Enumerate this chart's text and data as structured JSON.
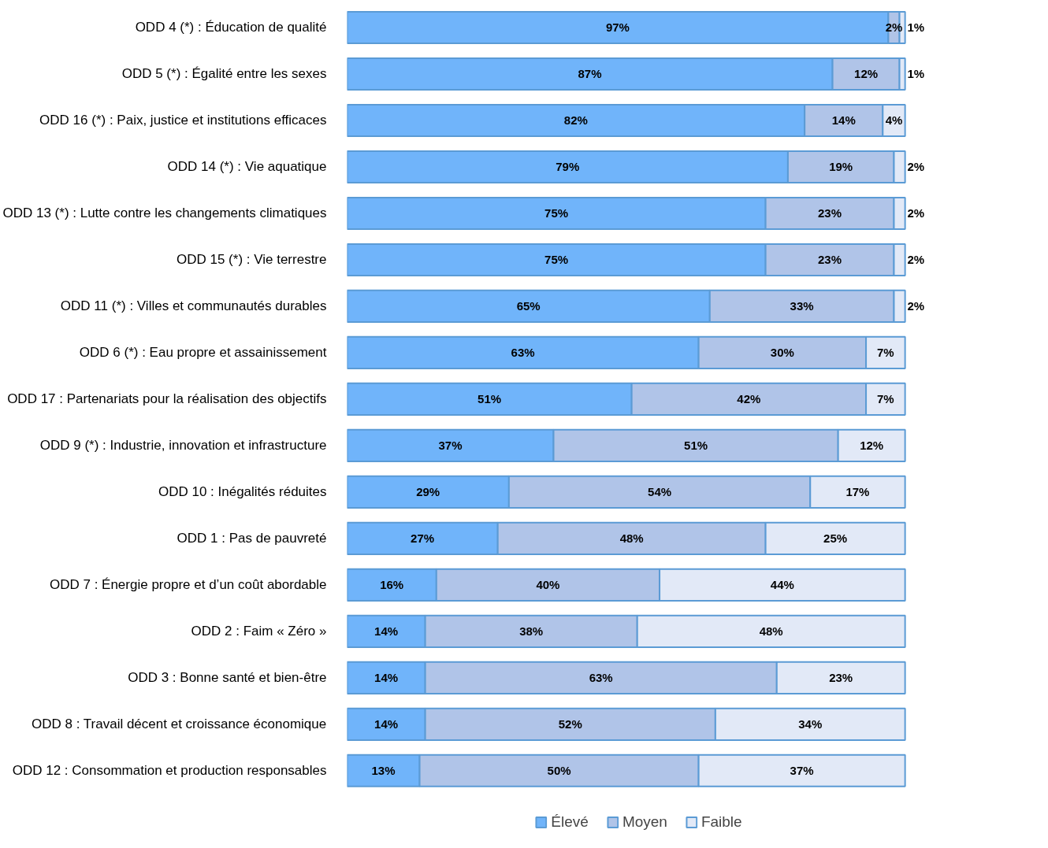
{
  "chart_data": {
    "type": "bar",
    "orientation": "horizontal",
    "stacked": true,
    "tick_labels": "y",
    "grid": false,
    "legend": "bottom",
    "categories": [
      "ODD 4 (*) : Éducation de qualité",
      "ODD 5 (*) : Égalité entre les sexes",
      "ODD 16 (*) : Paix, justice et institutions efficaces",
      "ODD 14 (*) : Vie aquatique",
      "ODD 13 (*) : Lutte contre les changements climatiques",
      "ODD 15 (*) : Vie terrestre",
      "ODD 11 (*) : Villes et communautés durables",
      "ODD 6 (*) : Eau propre et assainissement",
      "ODD 17 : Partenariats pour la réalisation des objectifs",
      "ODD 9 (*) : Industrie, innovation et infrastructure",
      "ODD 10 : Inégalités réduites",
      "ODD 1 : Pas de pauvreté",
      "ODD 7 : Énergie propre et d’un coût abordable",
      "ODD 2 : Faim « Zéro »",
      "ODD 3 : Bonne santé et bien-être",
      "ODD 8 : Travail décent et croissance économique",
      "ODD 12 : Consommation et production responsables"
    ],
    "series": [
      {
        "name": "Élevé",
        "color": "#70b4fa",
        "values": [
          97,
          87,
          82,
          79,
          75,
          75,
          65,
          63,
          51,
          37,
          29,
          27,
          16,
          14,
          14,
          14,
          13
        ],
        "value_labels": [
          "97%",
          "87%",
          "82%",
          "79%",
          "75%",
          "75%",
          "65%",
          "63%",
          "51%",
          "37%",
          "29%",
          "27%",
          "16%",
          "14%",
          "14%",
          "14%",
          "13%"
        ]
      },
      {
        "name": "Moyen",
        "color": "#b0c4e8",
        "values": [
          2,
          12,
          14,
          19,
          23,
          23,
          33,
          30,
          42,
          51,
          54,
          48,
          40,
          38,
          63,
          52,
          50
        ],
        "value_labels": [
          "2%",
          "12%",
          "14%",
          "19%",
          "23%",
          "23%",
          "33%",
          "30%",
          "42%",
          "51%",
          "54%",
          "48%",
          "40%",
          "38%",
          "63%",
          "52%",
          "50%"
        ]
      },
      {
        "name": "Faible",
        "color": "#e2e9f7",
        "values": [
          1,
          1,
          4,
          2,
          2,
          2,
          2,
          7,
          7,
          12,
          17,
          25,
          44,
          48,
          23,
          34,
          37
        ],
        "value_labels": [
          "1%",
          "1%",
          "4%",
          "2%",
          "2%",
          "2%",
          "2%",
          "7%",
          "7%",
          "12%",
          "17%",
          "25%",
          "44%",
          "48%",
          "23%",
          "34%",
          "37%"
        ]
      }
    ]
  }
}
